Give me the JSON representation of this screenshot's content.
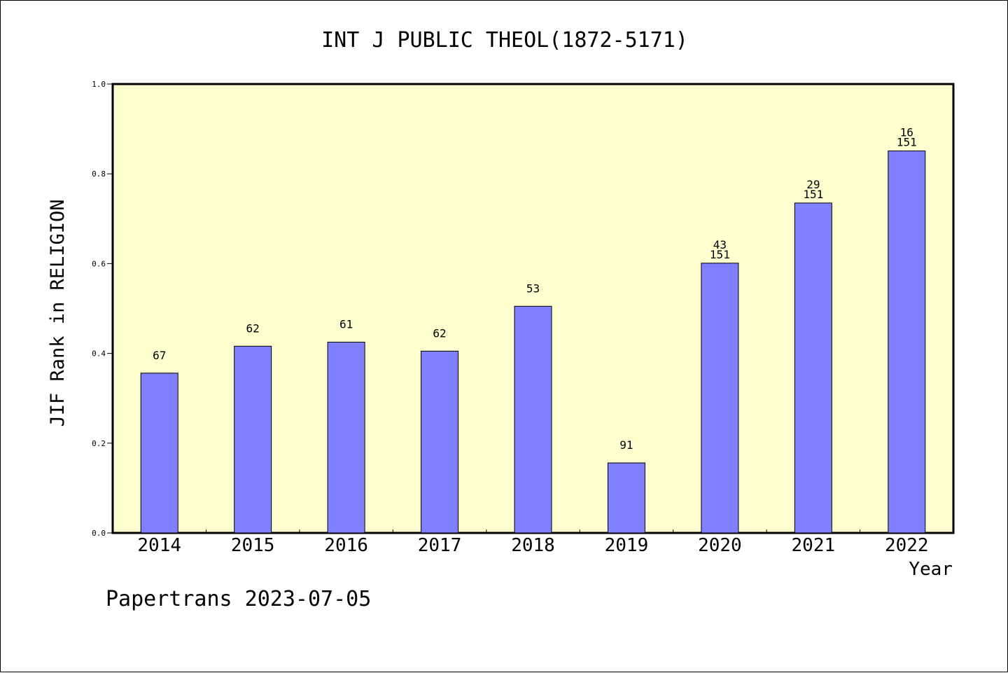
{
  "chart_data": {
    "type": "bar",
    "title": "INT J PUBLIC THEOL(1872-5171)",
    "xlabel": "Year",
    "ylabel": "JIF Rank in RELIGION",
    "footer": "Papertrans 2023-07-05",
    "categories": [
      "2014",
      "2015",
      "2016",
      "2017",
      "2018",
      "2019",
      "2020",
      "2021",
      "2022"
    ],
    "values": [
      0.356,
      0.416,
      0.425,
      0.405,
      0.505,
      0.156,
      0.601,
      0.735,
      0.851
    ],
    "rank_labels": [
      "67",
      "62",
      "61",
      "62",
      "53",
      "91",
      "43",
      "29",
      "16"
    ],
    "total_labels": [
      "",
      "",
      "",
      "",
      "",
      "",
      "151",
      "151",
      "151"
    ],
    "ylim": [
      0,
      1.0
    ],
    "yticks": [
      0.0,
      0.2,
      0.4,
      0.6,
      0.8,
      1.0
    ],
    "ytick_labels": [
      "0.0",
      "0.2",
      "0.4",
      "0.6",
      "0.8",
      "1.0"
    ],
    "grid": false,
    "legend": "none",
    "colors": {
      "bar_fill": "#8080ff",
      "plot_background": "#ffffd0",
      "axis": "#000000"
    }
  }
}
